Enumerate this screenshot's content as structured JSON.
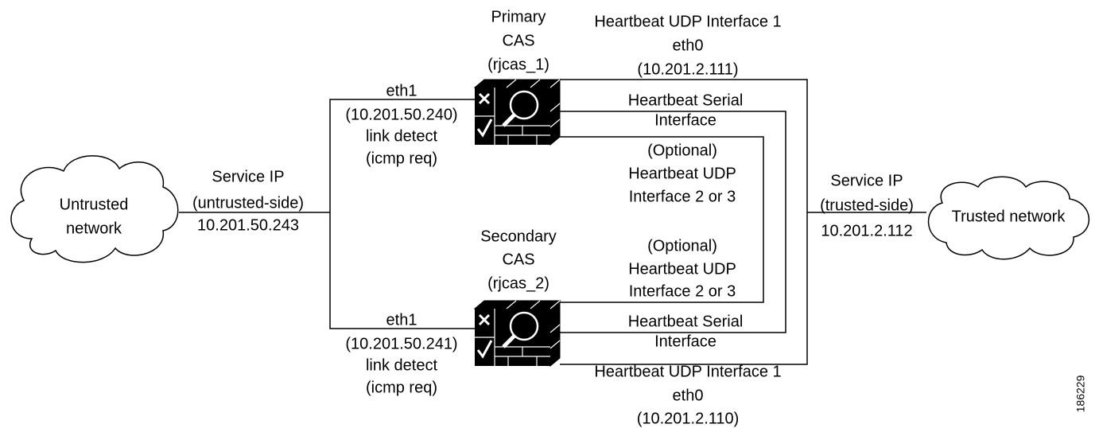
{
  "untrusted_cloud": [
    "Untrusted",
    "network"
  ],
  "trusted_cloud": [
    "Trusted network"
  ],
  "service_ip_untrusted": [
    "Service IP",
    "(untrusted-side)",
    "10.201.50.243"
  ],
  "service_ip_trusted": [
    "Service IP",
    "(trusted-side)",
    "10.201.2.112"
  ],
  "primary_cas": [
    "Primary",
    "CAS",
    "(rjcas_1)"
  ],
  "secondary_cas": [
    "Secondary",
    "CAS",
    "(rjcas_2)"
  ],
  "primary_eth1": [
    "eth1",
    "(10.201.50.240)",
    "link detect",
    "(icmp req)"
  ],
  "secondary_eth1": [
    "eth1",
    "(10.201.50.241)",
    "link detect",
    "(icmp req)"
  ],
  "primary_udp1": [
    "Heartbeat UDP Interface 1",
    "eth0",
    "(10.201.2.111)"
  ],
  "secondary_udp1": [
    "Heartbeat UDP Interface 1",
    "eth0",
    "(10.201.2.110)"
  ],
  "primary_serial": [
    "Heartbeat Serial",
    "Interface"
  ],
  "secondary_serial": [
    "Heartbeat Serial",
    "Interface"
  ],
  "primary_optional": [
    "(Optional)",
    "Heartbeat UDP",
    "Interface 2 or 3"
  ],
  "secondary_optional": [
    "(Optional)",
    "Heartbeat UDP",
    "Interface 2 or 3"
  ],
  "figure_id": "186229"
}
